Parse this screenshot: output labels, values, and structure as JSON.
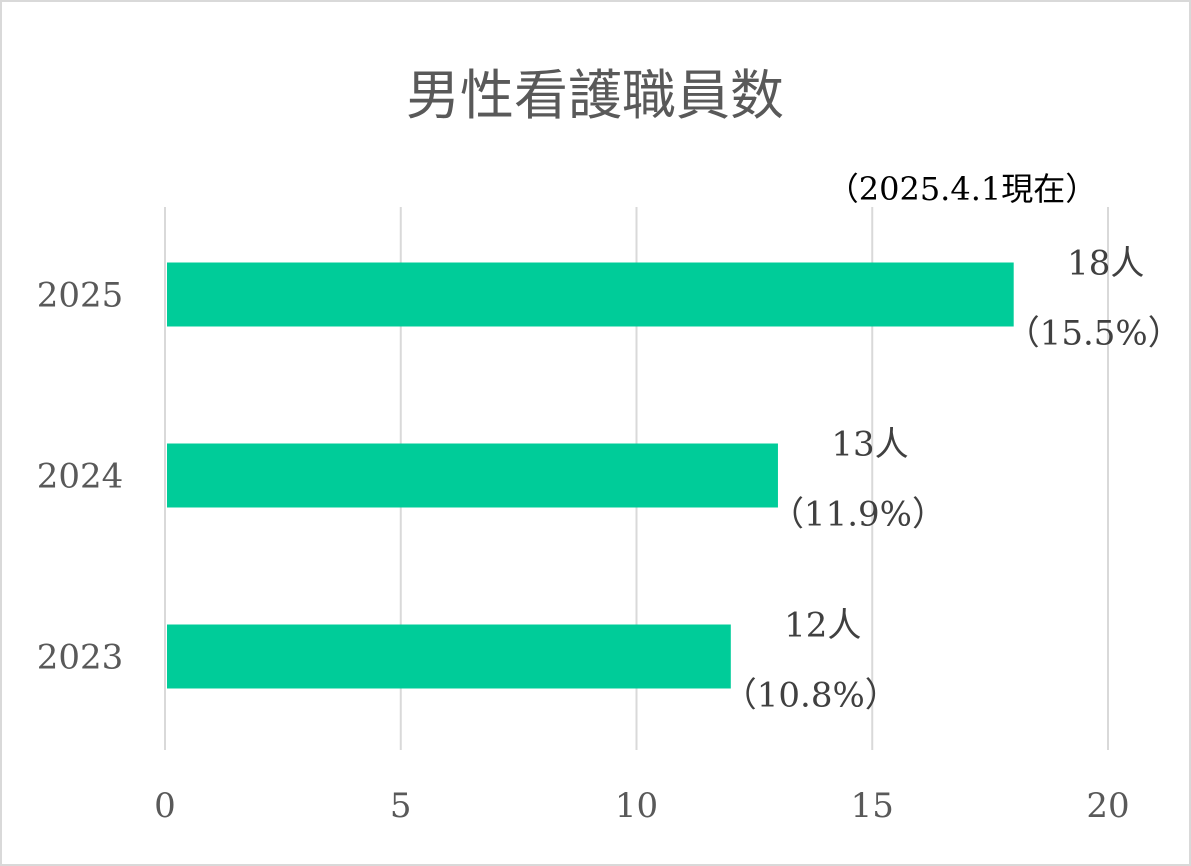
{
  "chart_data": {
    "type": "bar",
    "orientation": "horizontal",
    "title": "男性看護職員数",
    "note": "（2025.4.1現在）",
    "categories": [
      "2025",
      "2024",
      "2023"
    ],
    "values": [
      18,
      13,
      12
    ],
    "data_labels": [
      [
        "18人",
        "（15.5%）"
      ],
      [
        "13人",
        "（11.9%）"
      ],
      [
        "12人",
        "（10.8%）"
      ]
    ],
    "xlim": [
      0,
      20
    ],
    "x_ticks": [
      "0",
      "5",
      "10",
      "15",
      "20"
    ],
    "grid": true,
    "legend": "none",
    "colors": {
      "bar": "#00cc99",
      "grid": "#d9d9d9",
      "border": "#d9d9d9",
      "title": "#595959",
      "tick": "#595959",
      "label": "#404040"
    }
  }
}
